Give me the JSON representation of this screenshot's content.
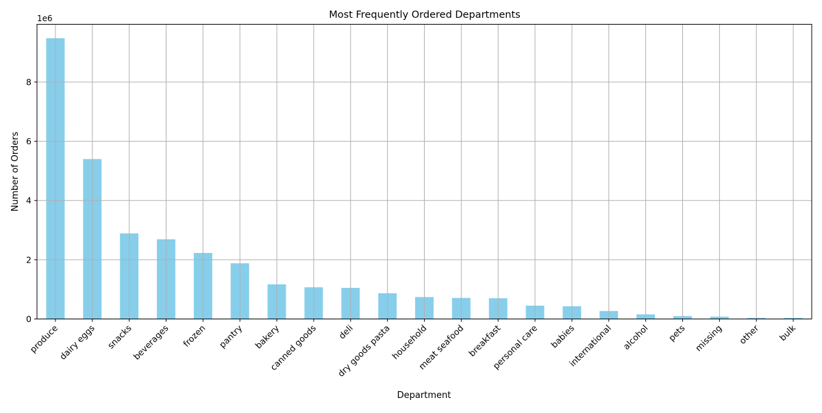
{
  "chart_data": {
    "type": "bar",
    "title": "Most Frequently Ordered Departments",
    "xlabel": "Department",
    "ylabel": "Number of Orders",
    "offset_label": "1e6",
    "categories": [
      "produce",
      "dairy eggs",
      "snacks",
      "beverages",
      "frozen",
      "pantry",
      "bakery",
      "canned goods",
      "deli",
      "dry goods pasta",
      "household",
      "meat seafood",
      "breakfast",
      "personal care",
      "babies",
      "international",
      "alcohol",
      "pets",
      "missing",
      "other",
      "bulk"
    ],
    "values": [
      9480000,
      5400000,
      2890000,
      2690000,
      2230000,
      1880000,
      1170000,
      1070000,
      1050000,
      870000,
      740000,
      710000,
      700000,
      450000,
      430000,
      270000,
      155000,
      98000,
      78000,
      37000,
      35000
    ],
    "y_ticks": [
      0,
      2000000,
      4000000,
      6000000,
      8000000
    ],
    "y_tick_labels": [
      "0",
      "2",
      "4",
      "6",
      "8"
    ],
    "ylim": [
      0,
      9950000
    ],
    "grid": true,
    "bar_color": "#87ceeb",
    "grid_color": "#b0b0b0"
  }
}
